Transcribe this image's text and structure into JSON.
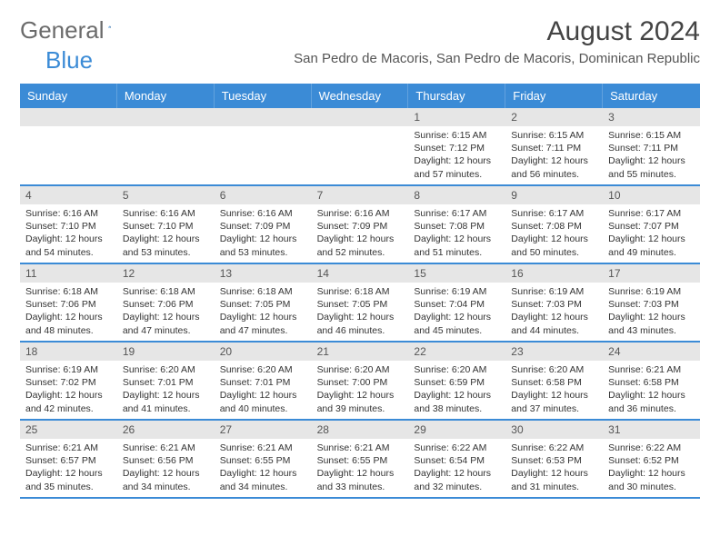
{
  "logo": {
    "text1": "General",
    "text2": "Blue"
  },
  "title": "August 2024",
  "location": "San Pedro de Macoris, San Pedro de Macoris, Dominican Republic",
  "headers": [
    "Sunday",
    "Monday",
    "Tuesday",
    "Wednesday",
    "Thursday",
    "Friday",
    "Saturday"
  ],
  "colors": {
    "brand_blue": "#3b8bd6",
    "header_bg": "#3b8bd6",
    "daybar_bg": "#e6e6e6",
    "text": "#333333"
  },
  "weeks": [
    [
      {
        "n": "",
        "sr": "",
        "ss": "",
        "dl": ""
      },
      {
        "n": "",
        "sr": "",
        "ss": "",
        "dl": ""
      },
      {
        "n": "",
        "sr": "",
        "ss": "",
        "dl": ""
      },
      {
        "n": "",
        "sr": "",
        "ss": "",
        "dl": ""
      },
      {
        "n": "1",
        "sr": "Sunrise: 6:15 AM",
        "ss": "Sunset: 7:12 PM",
        "dl": "Daylight: 12 hours and 57 minutes."
      },
      {
        "n": "2",
        "sr": "Sunrise: 6:15 AM",
        "ss": "Sunset: 7:11 PM",
        "dl": "Daylight: 12 hours and 56 minutes."
      },
      {
        "n": "3",
        "sr": "Sunrise: 6:15 AM",
        "ss": "Sunset: 7:11 PM",
        "dl": "Daylight: 12 hours and 55 minutes."
      }
    ],
    [
      {
        "n": "4",
        "sr": "Sunrise: 6:16 AM",
        "ss": "Sunset: 7:10 PM",
        "dl": "Daylight: 12 hours and 54 minutes."
      },
      {
        "n": "5",
        "sr": "Sunrise: 6:16 AM",
        "ss": "Sunset: 7:10 PM",
        "dl": "Daylight: 12 hours and 53 minutes."
      },
      {
        "n": "6",
        "sr": "Sunrise: 6:16 AM",
        "ss": "Sunset: 7:09 PM",
        "dl": "Daylight: 12 hours and 53 minutes."
      },
      {
        "n": "7",
        "sr": "Sunrise: 6:16 AM",
        "ss": "Sunset: 7:09 PM",
        "dl": "Daylight: 12 hours and 52 minutes."
      },
      {
        "n": "8",
        "sr": "Sunrise: 6:17 AM",
        "ss": "Sunset: 7:08 PM",
        "dl": "Daylight: 12 hours and 51 minutes."
      },
      {
        "n": "9",
        "sr": "Sunrise: 6:17 AM",
        "ss": "Sunset: 7:08 PM",
        "dl": "Daylight: 12 hours and 50 minutes."
      },
      {
        "n": "10",
        "sr": "Sunrise: 6:17 AM",
        "ss": "Sunset: 7:07 PM",
        "dl": "Daylight: 12 hours and 49 minutes."
      }
    ],
    [
      {
        "n": "11",
        "sr": "Sunrise: 6:18 AM",
        "ss": "Sunset: 7:06 PM",
        "dl": "Daylight: 12 hours and 48 minutes."
      },
      {
        "n": "12",
        "sr": "Sunrise: 6:18 AM",
        "ss": "Sunset: 7:06 PM",
        "dl": "Daylight: 12 hours and 47 minutes."
      },
      {
        "n": "13",
        "sr": "Sunrise: 6:18 AM",
        "ss": "Sunset: 7:05 PM",
        "dl": "Daylight: 12 hours and 47 minutes."
      },
      {
        "n": "14",
        "sr": "Sunrise: 6:18 AM",
        "ss": "Sunset: 7:05 PM",
        "dl": "Daylight: 12 hours and 46 minutes."
      },
      {
        "n": "15",
        "sr": "Sunrise: 6:19 AM",
        "ss": "Sunset: 7:04 PM",
        "dl": "Daylight: 12 hours and 45 minutes."
      },
      {
        "n": "16",
        "sr": "Sunrise: 6:19 AM",
        "ss": "Sunset: 7:03 PM",
        "dl": "Daylight: 12 hours and 44 minutes."
      },
      {
        "n": "17",
        "sr": "Sunrise: 6:19 AM",
        "ss": "Sunset: 7:03 PM",
        "dl": "Daylight: 12 hours and 43 minutes."
      }
    ],
    [
      {
        "n": "18",
        "sr": "Sunrise: 6:19 AM",
        "ss": "Sunset: 7:02 PM",
        "dl": "Daylight: 12 hours and 42 minutes."
      },
      {
        "n": "19",
        "sr": "Sunrise: 6:20 AM",
        "ss": "Sunset: 7:01 PM",
        "dl": "Daylight: 12 hours and 41 minutes."
      },
      {
        "n": "20",
        "sr": "Sunrise: 6:20 AM",
        "ss": "Sunset: 7:01 PM",
        "dl": "Daylight: 12 hours and 40 minutes."
      },
      {
        "n": "21",
        "sr": "Sunrise: 6:20 AM",
        "ss": "Sunset: 7:00 PM",
        "dl": "Daylight: 12 hours and 39 minutes."
      },
      {
        "n": "22",
        "sr": "Sunrise: 6:20 AM",
        "ss": "Sunset: 6:59 PM",
        "dl": "Daylight: 12 hours and 38 minutes."
      },
      {
        "n": "23",
        "sr": "Sunrise: 6:20 AM",
        "ss": "Sunset: 6:58 PM",
        "dl": "Daylight: 12 hours and 37 minutes."
      },
      {
        "n": "24",
        "sr": "Sunrise: 6:21 AM",
        "ss": "Sunset: 6:58 PM",
        "dl": "Daylight: 12 hours and 36 minutes."
      }
    ],
    [
      {
        "n": "25",
        "sr": "Sunrise: 6:21 AM",
        "ss": "Sunset: 6:57 PM",
        "dl": "Daylight: 12 hours and 35 minutes."
      },
      {
        "n": "26",
        "sr": "Sunrise: 6:21 AM",
        "ss": "Sunset: 6:56 PM",
        "dl": "Daylight: 12 hours and 34 minutes."
      },
      {
        "n": "27",
        "sr": "Sunrise: 6:21 AM",
        "ss": "Sunset: 6:55 PM",
        "dl": "Daylight: 12 hours and 34 minutes."
      },
      {
        "n": "28",
        "sr": "Sunrise: 6:21 AM",
        "ss": "Sunset: 6:55 PM",
        "dl": "Daylight: 12 hours and 33 minutes."
      },
      {
        "n": "29",
        "sr": "Sunrise: 6:22 AM",
        "ss": "Sunset: 6:54 PM",
        "dl": "Daylight: 12 hours and 32 minutes."
      },
      {
        "n": "30",
        "sr": "Sunrise: 6:22 AM",
        "ss": "Sunset: 6:53 PM",
        "dl": "Daylight: 12 hours and 31 minutes."
      },
      {
        "n": "31",
        "sr": "Sunrise: 6:22 AM",
        "ss": "Sunset: 6:52 PM",
        "dl": "Daylight: 12 hours and 30 minutes."
      }
    ]
  ]
}
